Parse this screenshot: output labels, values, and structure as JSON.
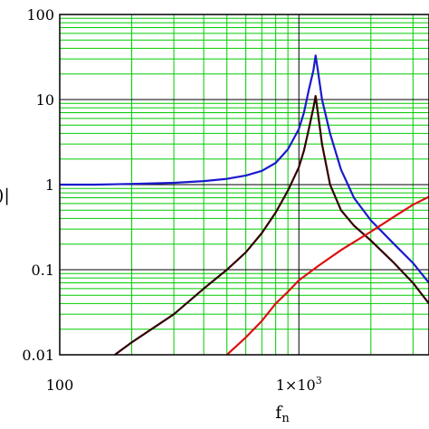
{
  "chart_data": {
    "type": "line",
    "xscale": "log",
    "yscale": "log",
    "xlim": [
      100,
      3500
    ],
    "ylim": [
      0.01,
      100
    ],
    "grid": true,
    "xlabel": "f",
    "xlabel_sub": "n",
    "ylabel_fragment": ")|",
    "x_ticks": [
      {
        "value": 100,
        "label": "100"
      },
      {
        "value": 1000,
        "label": "1×10",
        "sup": "3"
      }
    ],
    "y_ticks": [
      {
        "value": 100,
        "label": "100"
      },
      {
        "value": 10,
        "label": "10"
      },
      {
        "value": 1,
        "label": "1"
      },
      {
        "value": 0.1,
        "label": "0.1"
      },
      {
        "value": 0.01,
        "label": "0.01"
      }
    ],
    "colors": {
      "grid_minor": "#00cc00",
      "grid_major": "#000000",
      "frame": "#000000"
    },
    "series": [
      {
        "color": "#1a1acc",
        "points": [
          [
            100,
            1.0
          ],
          [
            140,
            1.0
          ],
          [
            200,
            1.02
          ],
          [
            300,
            1.05
          ],
          [
            400,
            1.1
          ],
          [
            500,
            1.17
          ],
          [
            600,
            1.28
          ],
          [
            700,
            1.45
          ],
          [
            800,
            1.8
          ],
          [
            900,
            2.6
          ],
          [
            1000,
            4.5
          ],
          [
            1050,
            7
          ],
          [
            1100,
            13
          ],
          [
            1150,
            22
          ],
          [
            1175,
            33
          ],
          [
            1200,
            22
          ],
          [
            1250,
            10
          ],
          [
            1350,
            4.0
          ],
          [
            1500,
            1.5
          ],
          [
            1700,
            0.7
          ],
          [
            2000,
            0.38
          ],
          [
            2500,
            0.2
          ],
          [
            3000,
            0.12
          ],
          [
            3500,
            0.07
          ]
        ]
      },
      {
        "color": "#330000",
        "points": [
          [
            170,
            0.01
          ],
          [
            200,
            0.014
          ],
          [
            300,
            0.03
          ],
          [
            400,
            0.06
          ],
          [
            500,
            0.1
          ],
          [
            600,
            0.16
          ],
          [
            700,
            0.27
          ],
          [
            800,
            0.47
          ],
          [
            900,
            0.85
          ],
          [
            1000,
            1.6
          ],
          [
            1050,
            2.5
          ],
          [
            1100,
            4.5
          ],
          [
            1150,
            8
          ],
          [
            1175,
            11
          ],
          [
            1200,
            7
          ],
          [
            1250,
            3.0
          ],
          [
            1350,
            1.0
          ],
          [
            1500,
            0.5
          ],
          [
            1700,
            0.33
          ],
          [
            2000,
            0.22
          ],
          [
            2500,
            0.12
          ],
          [
            3000,
            0.07
          ],
          [
            3500,
            0.04
          ]
        ]
      },
      {
        "color": "#dd1111",
        "points": [
          [
            500,
            0.01
          ],
          [
            600,
            0.016
          ],
          [
            700,
            0.025
          ],
          [
            800,
            0.04
          ],
          [
            900,
            0.055
          ],
          [
            1000,
            0.075
          ],
          [
            1200,
            0.11
          ],
          [
            1500,
            0.17
          ],
          [
            2000,
            0.28
          ],
          [
            2500,
            0.42
          ],
          [
            3000,
            0.58
          ],
          [
            3500,
            0.72
          ]
        ]
      }
    ]
  }
}
